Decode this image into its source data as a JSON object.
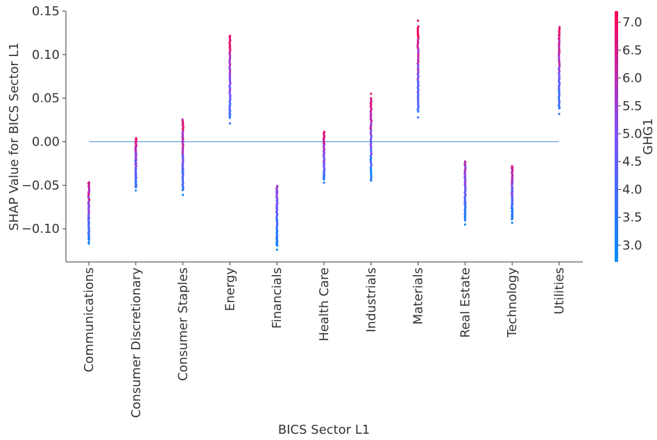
{
  "chart_data": {
    "type": "scatter",
    "xlabel": "BICS Sector L1",
    "ylabel": "SHAP Value for BICS Sector L1",
    "ylim": [
      -0.138,
      0.15
    ],
    "yticks": [
      0.15,
      0.1,
      0.05,
      0.0,
      -0.05,
      -0.1
    ],
    "ytick_labels": [
      "0.15",
      "0.10",
      "0.05",
      "0.00",
      "−0.05",
      "−0.10"
    ],
    "reference_line_y": 0.0,
    "categories": [
      "Communications",
      "Consumer Discretionary",
      "Consumer Staples",
      "Energy",
      "Financials",
      "Health Care",
      "Industrials",
      "Materials",
      "Real Estate",
      "Technology",
      "Utilities"
    ],
    "series": [
      {
        "category": "Communications",
        "y_range": [
          -0.117,
          -0.042
        ],
        "color_range": [
          3.0,
          6.8
        ],
        "outliers": [
          -0.117,
          -0.115
        ]
      },
      {
        "category": "Consumer Discretionary",
        "y_range": [
          -0.056,
          0.008
        ],
        "color_range": [
          3.2,
          6.8
        ],
        "outliers": [
          -0.056
        ]
      },
      {
        "category": "Consumer Staples",
        "y_range": [
          -0.061,
          0.031
        ],
        "color_range": [
          3.2,
          6.8
        ],
        "outliers": [
          -0.061
        ]
      },
      {
        "category": "Energy",
        "y_range": [
          0.021,
          0.128
        ],
        "color_range": [
          3.5,
          7.0
        ],
        "outliers": [
          0.021
        ]
      },
      {
        "category": "Financials",
        "y_range": [
          -0.124,
          -0.046
        ],
        "color_range": [
          2.9,
          5.5
        ],
        "outliers": [
          -0.124
        ]
      },
      {
        "category": "Health Care",
        "y_range": [
          -0.047,
          0.015
        ],
        "color_range": [
          3.5,
          7.0
        ],
        "outliers": [
          -0.047
        ]
      },
      {
        "category": "Industrials",
        "y_range": [
          -0.051,
          0.055
        ],
        "color_range": [
          3.0,
          6.8
        ],
        "outliers": [
          0.055,
          0.05
        ]
      },
      {
        "category": "Materials",
        "y_range": [
          0.028,
          0.139
        ],
        "color_range": [
          3.6,
          7.1
        ],
        "outliers": [
          0.139,
          0.028
        ]
      },
      {
        "category": "Real Estate",
        "y_range": [
          -0.095,
          -0.018
        ],
        "color_range": [
          3.0,
          6.0
        ],
        "outliers": [
          -0.095
        ]
      },
      {
        "category": "Technology",
        "y_range": [
          -0.093,
          -0.024
        ],
        "color_range": [
          3.0,
          6.5
        ],
        "outliers": [
          -0.093
        ]
      },
      {
        "category": "Utilities",
        "y_range": [
          0.032,
          0.138
        ],
        "color_range": [
          3.6,
          7.1
        ],
        "outliers": [
          0.032
        ]
      }
    ],
    "colorbar": {
      "label": "GHG1",
      "range": [
        2.7,
        7.2
      ],
      "ticks": [
        "7.0",
        "6.5",
        "6.0",
        "5.5",
        "5.0",
        "4.5",
        "4.0",
        "3.5",
        "3.0"
      ],
      "color_low": "#008bfb",
      "color_mid": "#7c52ff",
      "color_high": "#ff0052"
    },
    "grid": false,
    "line_color": "#5b9bd5"
  }
}
